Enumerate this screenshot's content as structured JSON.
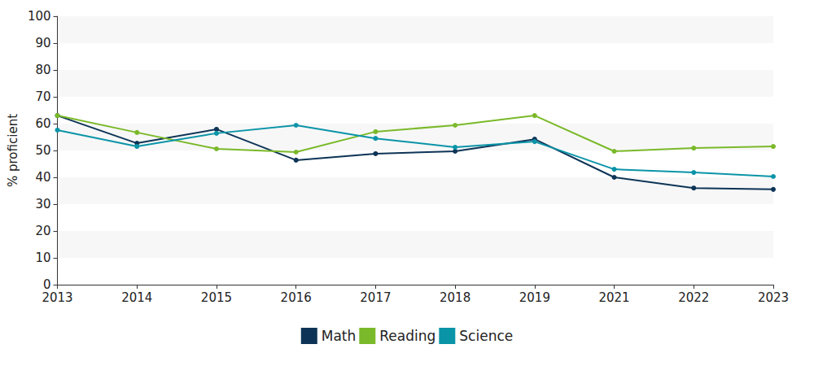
{
  "chart_data": {
    "type": "line",
    "y_label": "% proficient",
    "categories": [
      "2013",
      "2014",
      "2015",
      "2016",
      "2017",
      "2018",
      "2019",
      "2021",
      "2022",
      "2023"
    ],
    "series": [
      {
        "name": "Math",
        "color": "#0d3456",
        "values": [
          63,
          52.7,
          57.9,
          46.4,
          48.8,
          49.7,
          54.2,
          40,
          36,
          35.5
        ]
      },
      {
        "name": "Reading",
        "color": "#7ab929",
        "values": [
          63,
          56.7,
          50.6,
          49.4,
          57,
          59.4,
          63,
          49.7,
          50.9,
          51.5
        ]
      },
      {
        "name": "Science",
        "color": "#0a94a8",
        "values": [
          57.6,
          51.5,
          56.4,
          59.4,
          54.5,
          51.2,
          53.3,
          43,
          41.8,
          40.3
        ]
      }
    ],
    "ylim": [
      0,
      100
    ],
    "yticks": [
      0,
      10,
      20,
      30,
      40,
      50,
      60,
      70,
      80,
      90,
      100
    ],
    "grid": true,
    "legend": "bottom",
    "marker": "circle"
  }
}
